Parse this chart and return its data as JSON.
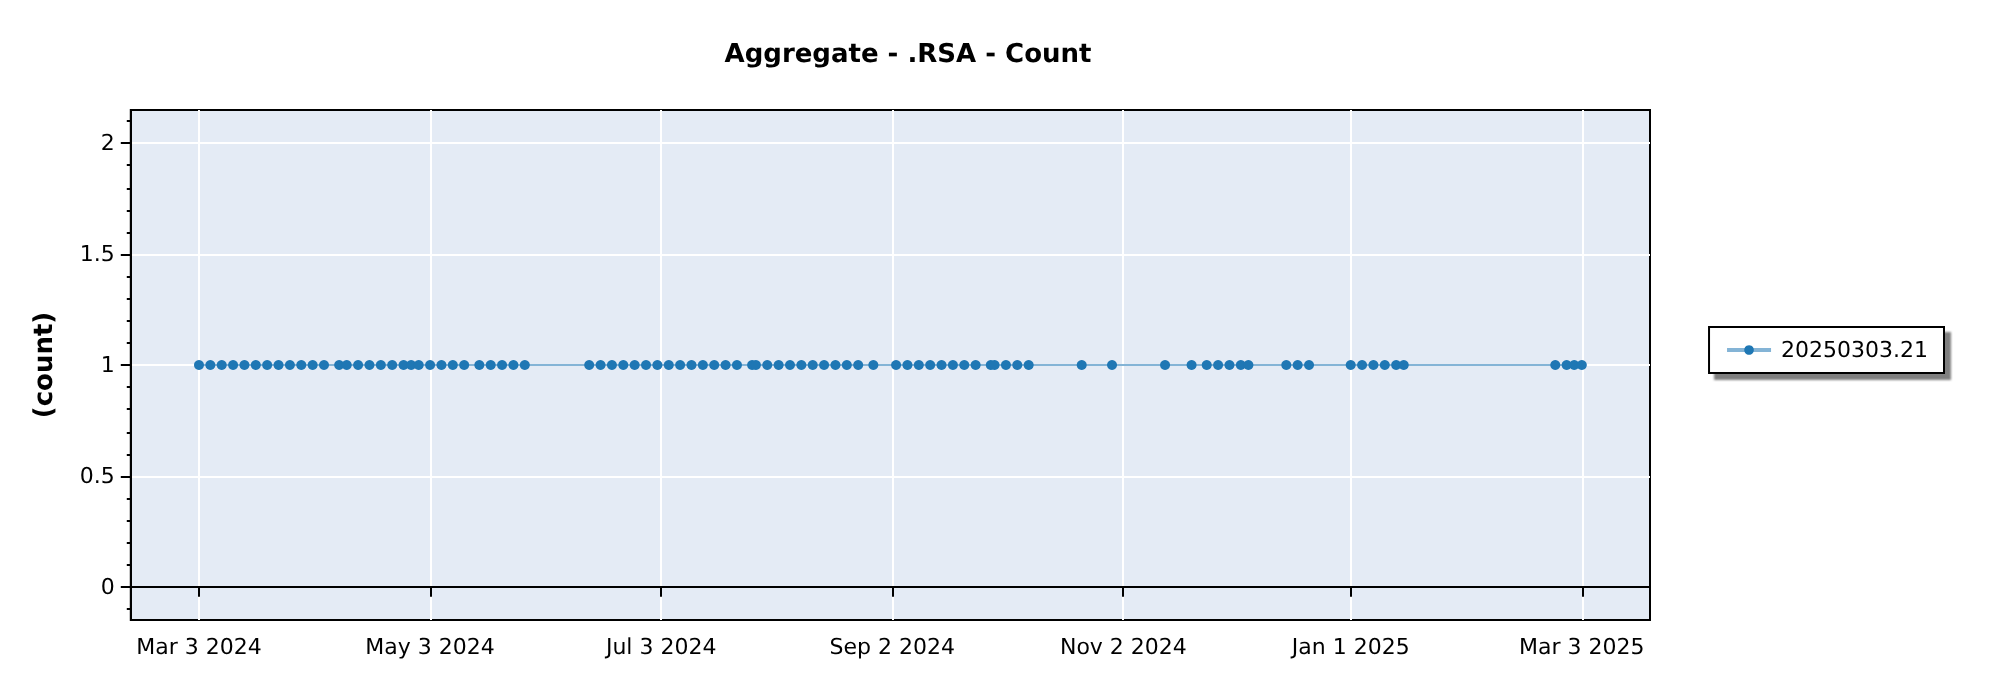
{
  "chart_data": {
    "type": "line",
    "title": "Aggregate - .RSA - Count",
    "ylabel": "(count)",
    "xlim": [
      "2024-02-14",
      "2025-03-21"
    ],
    "ylim": [
      -0.15,
      2.15
    ],
    "xticks": [
      {
        "value": "2024-03-03",
        "label": "Mar 3 2024"
      },
      {
        "value": "2024-05-03",
        "label": "May 3 2024"
      },
      {
        "value": "2024-07-03",
        "label": "Jul 3 2024"
      },
      {
        "value": "2024-09-02",
        "label": "Sep 2 2024"
      },
      {
        "value": "2024-11-02",
        "label": "Nov 2 2024"
      },
      {
        "value": "2025-01-01",
        "label": "Jan 1 2025"
      },
      {
        "value": "2025-03-03",
        "label": "Mar 3 2025"
      }
    ],
    "yticks": [
      0,
      0.5,
      1,
      1.5,
      2
    ],
    "grid": true,
    "legend": "right",
    "marker": "circle",
    "line_style": "solid",
    "series": [
      {
        "name": "20250303.21",
        "color": "#1f77b4",
        "x": [
          "2024-03-03",
          "2024-03-06",
          "2024-03-09",
          "2024-03-12",
          "2024-03-15",
          "2024-03-18",
          "2024-03-21",
          "2024-03-24",
          "2024-03-27",
          "2024-03-30",
          "2024-04-02",
          "2024-04-05",
          "2024-04-09",
          "2024-04-11",
          "2024-04-14",
          "2024-04-17",
          "2024-04-20",
          "2024-04-23",
          "2024-04-26",
          "2024-04-28",
          "2024-04-30",
          "2024-05-03",
          "2024-05-06",
          "2024-05-09",
          "2024-05-12",
          "2024-05-16",
          "2024-05-19",
          "2024-05-22",
          "2024-05-25",
          "2024-05-28",
          "2024-06-14",
          "2024-06-17",
          "2024-06-20",
          "2024-06-23",
          "2024-06-26",
          "2024-06-29",
          "2024-07-02",
          "2024-07-05",
          "2024-07-08",
          "2024-07-11",
          "2024-07-14",
          "2024-07-17",
          "2024-07-20",
          "2024-07-23",
          "2024-07-27",
          "2024-07-28",
          "2024-07-31",
          "2024-08-03",
          "2024-08-06",
          "2024-08-09",
          "2024-08-12",
          "2024-08-15",
          "2024-08-18",
          "2024-08-21",
          "2024-08-24",
          "2024-08-28",
          "2024-09-03",
          "2024-09-06",
          "2024-09-09",
          "2024-09-12",
          "2024-09-15",
          "2024-09-18",
          "2024-09-21",
          "2024-09-24",
          "2024-09-28",
          "2024-09-29",
          "2024-10-02",
          "2024-10-05",
          "2024-10-08",
          "2024-10-22",
          "2024-10-30",
          "2024-11-13",
          "2024-11-20",
          "2024-11-24",
          "2024-11-27",
          "2024-11-30",
          "2024-12-03",
          "2024-12-05",
          "2024-12-15",
          "2024-12-18",
          "2024-12-21",
          "2025-01-01",
          "2025-01-04",
          "2025-01-07",
          "2025-01-10",
          "2025-01-13",
          "2025-01-15",
          "2025-02-24",
          "2025-02-27",
          "2025-03-01",
          "2025-03-03"
        ],
        "values": [
          1,
          1,
          1,
          1,
          1,
          1,
          1,
          1,
          1,
          1,
          1,
          1,
          1,
          1,
          1,
          1,
          1,
          1,
          1,
          1,
          1,
          1,
          1,
          1,
          1,
          1,
          1,
          1,
          1,
          1,
          1,
          1,
          1,
          1,
          1,
          1,
          1,
          1,
          1,
          1,
          1,
          1,
          1,
          1,
          1,
          1,
          1,
          1,
          1,
          1,
          1,
          1,
          1,
          1,
          1,
          1,
          1,
          1,
          1,
          1,
          1,
          1,
          1,
          1,
          1,
          1,
          1,
          1,
          1,
          1,
          1,
          1,
          1,
          1,
          1,
          1,
          1,
          1,
          1,
          1,
          1,
          1,
          1,
          1,
          1,
          1,
          1,
          1,
          1,
          1,
          1
        ]
      }
    ]
  }
}
